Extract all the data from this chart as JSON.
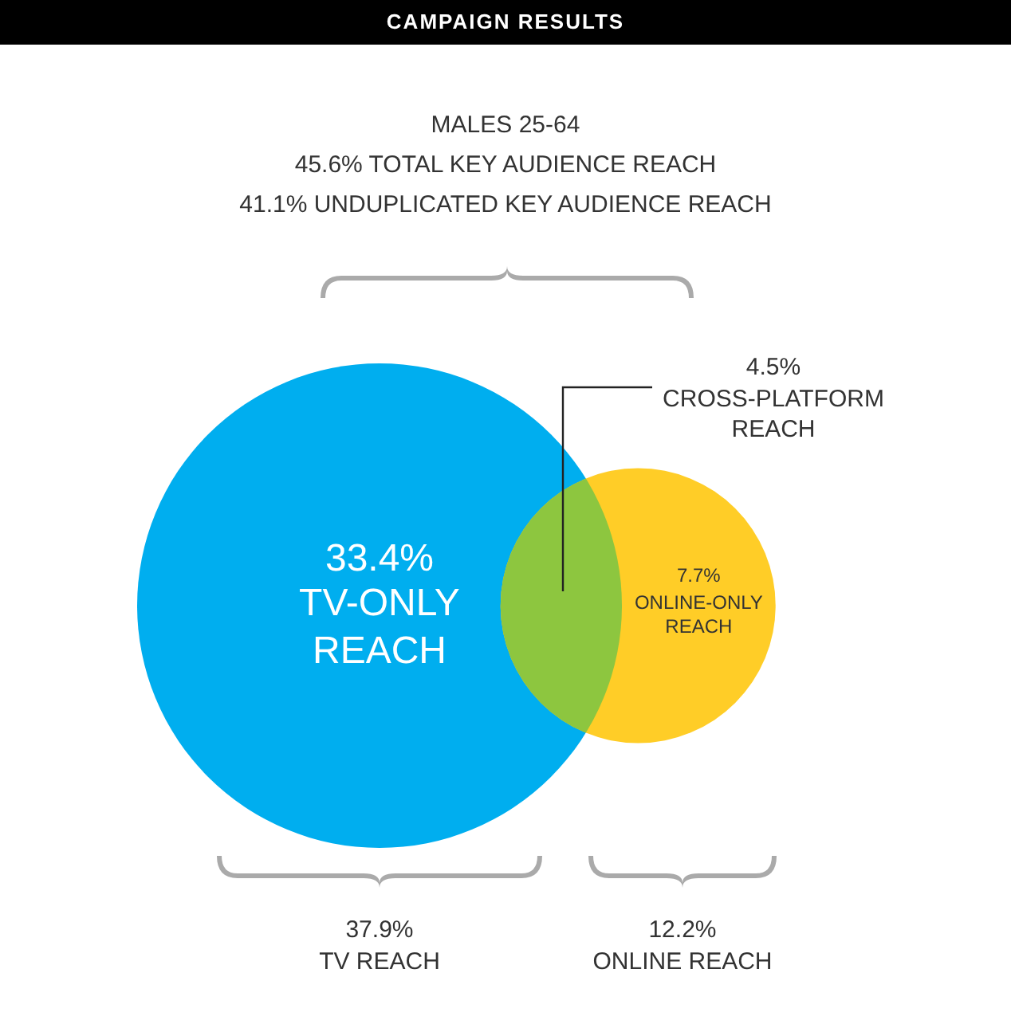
{
  "chart_data": {
    "type": "other",
    "title": "CAMPAIGN RESULTS",
    "categories": [
      "TV-ONLY REACH",
      "CROSS-PLATFORM REACH",
      "ONLINE-ONLY REACH"
    ],
    "values": [
      33.4,
      4.5,
      7.7
    ],
    "value_labels": [
      "33.4%",
      "4.5%",
      "7.7%"
    ],
    "colors": [
      "#00aeef",
      "#8dc63f",
      "#ffcd27"
    ],
    "annotations": [
      "MALES 25-64",
      "45.6% TOTAL KEY AUDIENCE REACH",
      "41.1% UNDUPLICATED KEY AUDIENCE REACH",
      "37.9%",
      "TV REACH",
      "12.2%",
      "ONLINE REACH"
    ]
  }
}
